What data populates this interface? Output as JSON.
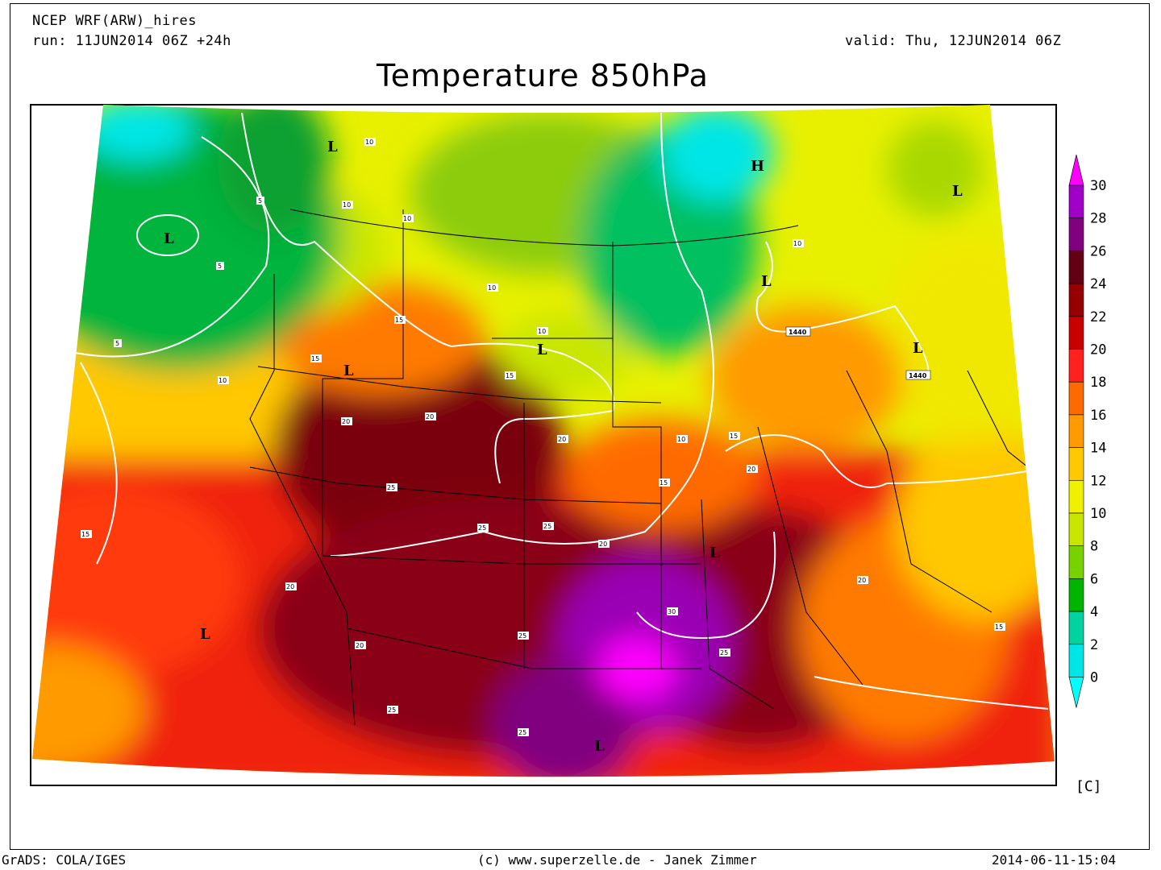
{
  "header": {
    "model": "NCEP WRF(ARW)_hires",
    "run": "run: 11JUN2014 06Z +24h",
    "valid": "valid: Thu, 12JUN2014 06Z",
    "title": "Temperature 850hPa"
  },
  "footer": {
    "left": "GrADS: COLA/IGES",
    "center": "(c) www.superzelle.de - Janek Zimmer",
    "right": "2014-06-11-15:04"
  },
  "colorbar": {
    "unit": "[C]",
    "ticks": [
      "30",
      "28",
      "26",
      "24",
      "22",
      "20",
      "18",
      "16",
      "14",
      "12",
      "10",
      "8",
      "6",
      "4",
      "2",
      "0"
    ],
    "colors": [
      "#ff00ff",
      "#a000c8",
      "#800080",
      "#640014",
      "#960000",
      "#c80000",
      "#ff2020",
      "#ff6a00",
      "#ff9a00",
      "#ffc800",
      "#f0f000",
      "#c8e600",
      "#78d200",
      "#00b400",
      "#00d2a0",
      "#00e6e6",
      "#00ffff"
    ]
  },
  "map_labels": {
    "pressure_centers": [
      "L",
      "L",
      "H",
      "L",
      "L",
      "L",
      "L",
      "L",
      "L",
      "L",
      "L"
    ],
    "isotherm_labels": [
      "5",
      "5",
      "5",
      "10",
      "10",
      "10",
      "10",
      "10",
      "10",
      "10",
      "10",
      "15",
      "15",
      "15",
      "15",
      "15",
      "15",
      "15",
      "20",
      "20",
      "20",
      "20",
      "20",
      "20",
      "20",
      "20",
      "25",
      "25",
      "25",
      "25",
      "25",
      "25",
      "25",
      "30"
    ],
    "height_labels": [
      "1440",
      "1440"
    ]
  }
}
